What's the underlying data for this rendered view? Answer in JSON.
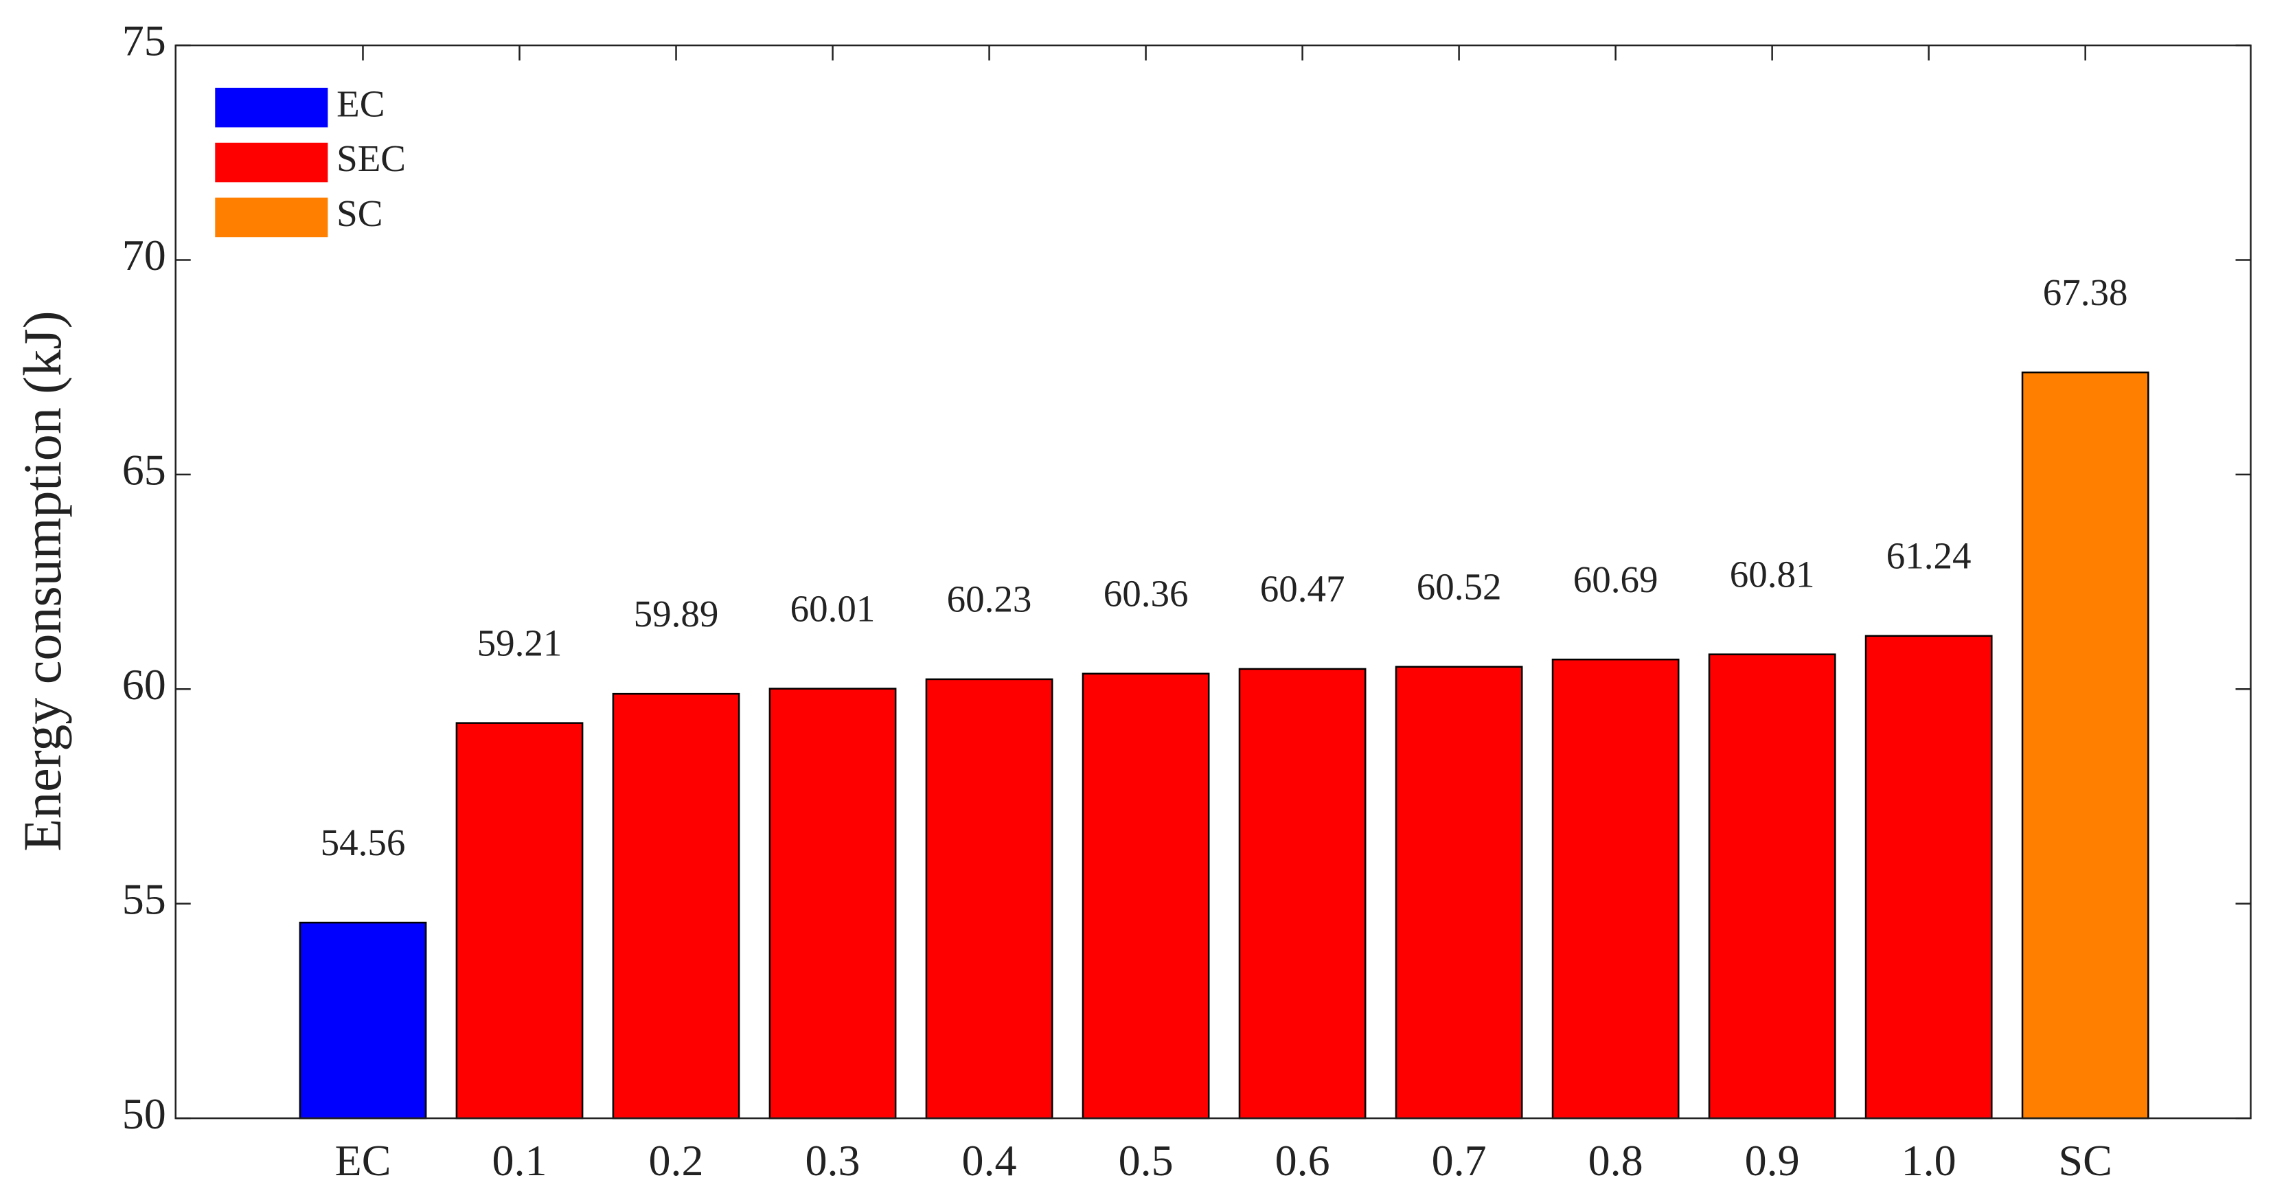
{
  "chart_data": {
    "type": "bar",
    "y_label": "Energy consumption (kJ)",
    "categories": [
      "EC",
      "0.1",
      "0.2",
      "0.3",
      "0.4",
      "0.5",
      "0.6",
      "0.7",
      "0.8",
      "0.9",
      "1.0",
      "SC"
    ],
    "series": [
      {
        "name": "EC",
        "color": "#0000ff",
        "values": [
          54.56,
          null,
          null,
          null,
          null,
          null,
          null,
          null,
          null,
          null,
          null,
          null
        ]
      },
      {
        "name": "SEC",
        "color": "#ff0000",
        "values": [
          null,
          59.21,
          59.89,
          60.01,
          60.23,
          60.36,
          60.47,
          60.52,
          60.69,
          60.81,
          61.24,
          null
        ]
      },
      {
        "name": "SC",
        "color": "#ff8000",
        "values": [
          null,
          null,
          null,
          null,
          null,
          null,
          null,
          null,
          null,
          null,
          null,
          67.38
        ]
      }
    ],
    "ylim": [
      50,
      75
    ],
    "yticks": [
      50,
      55,
      60,
      65,
      70,
      75
    ],
    "legend": "upper-left",
    "grid": false
  }
}
